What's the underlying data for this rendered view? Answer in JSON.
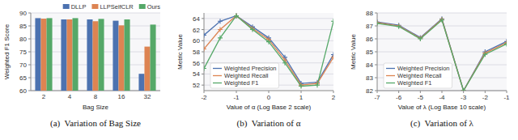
{
  "chart_data": [
    {
      "type": "bar",
      "title": "(a)  Variation of Bag Size",
      "xlabel": "Bag Size",
      "ylabel": "Weighted F1 Score",
      "categories": [
        "2",
        "4",
        "8",
        "16",
        "32"
      ],
      "series": [
        {
          "name": "DLLP",
          "color": "#4C72B0",
          "values": [
            88.0,
            87.5,
            87.5,
            87.0,
            66.5
          ]
        },
        {
          "name": "LLPSelfCLR",
          "color": "#DD8452",
          "values": [
            87.8,
            87.5,
            86.8,
            85.2,
            77.0
          ]
        },
        {
          "name": "Ours",
          "color": "#55A868",
          "values": [
            88.0,
            88.0,
            87.7,
            87.5,
            85.5
          ]
        }
      ],
      "ylim": [
        60,
        90
      ],
      "yticks": [
        60,
        65,
        70,
        75,
        80,
        85,
        90
      ],
      "grid": true,
      "legend": "upper right"
    },
    {
      "type": "line",
      "title": "(b)  Variation of α",
      "xlabel": "Value of α (Log Base 2 scale)",
      "ylabel": "Metric Value",
      "x": [
        -2.0,
        -1.5,
        -1.0,
        -0.5,
        0.0,
        0.5,
        1.0,
        1.5,
        2.0
      ],
      "series": [
        {
          "name": "Weighted Precision",
          "color": "#4C72B0",
          "values": [
            61.0,
            63.5,
            64.5,
            62.5,
            60.5,
            57.0,
            52.3,
            52.5,
            57.5
          ]
        },
        {
          "name": "Weighted Recall",
          "color": "#DD8452",
          "values": [
            58.5,
            62.0,
            64.5,
            62.2,
            60.2,
            56.5,
            52.0,
            52.3,
            57.0
          ]
        },
        {
          "name": "Weighted F1",
          "color": "#55A868",
          "values": [
            55.0,
            60.5,
            64.5,
            62.0,
            59.8,
            56.0,
            51.8,
            52.0,
            63.5
          ]
        }
      ],
      "xlim": [
        -2.0,
        2.0
      ],
      "xticks": [
        -2,
        -1,
        0,
        1,
        2
      ],
      "ylim": [
        51,
        65
      ],
      "yticks": [
        52,
        54,
        56,
        58,
        60,
        62,
        64
      ],
      "grid": true,
      "legend": "lower left",
      "marker": "plus"
    },
    {
      "type": "line",
      "title": "(c)  Variation of λ",
      "xlabel": "Value of λ (Log Base 10 scale)",
      "ylabel": "Metric Value",
      "x": [
        -7,
        -6,
        -5,
        -4,
        -3,
        -2,
        -1
      ],
      "series": [
        {
          "name": "Weighted Precision",
          "color": "#4C72B0",
          "values": [
            87.3,
            87.05,
            86.1,
            87.55,
            82.0,
            85.0,
            85.8
          ]
        },
        {
          "name": "Weighted Recall",
          "color": "#DD8452",
          "values": [
            87.25,
            87.0,
            86.05,
            87.5,
            82.0,
            84.9,
            85.7
          ]
        },
        {
          "name": "Weighted F1",
          "color": "#55A868",
          "values": [
            87.2,
            86.95,
            86.0,
            87.45,
            82.0,
            84.8,
            85.6
          ]
        }
      ],
      "xlim": [
        -7,
        -1
      ],
      "xticks": [
        -7,
        -6,
        -5,
        -4,
        -3,
        -2,
        -1
      ],
      "ylim": [
        82,
        88
      ],
      "yticks": [
        82,
        83,
        84,
        85,
        86,
        87,
        88
      ],
      "grid": true,
      "legend": "lower left",
      "marker": "plus"
    }
  ]
}
